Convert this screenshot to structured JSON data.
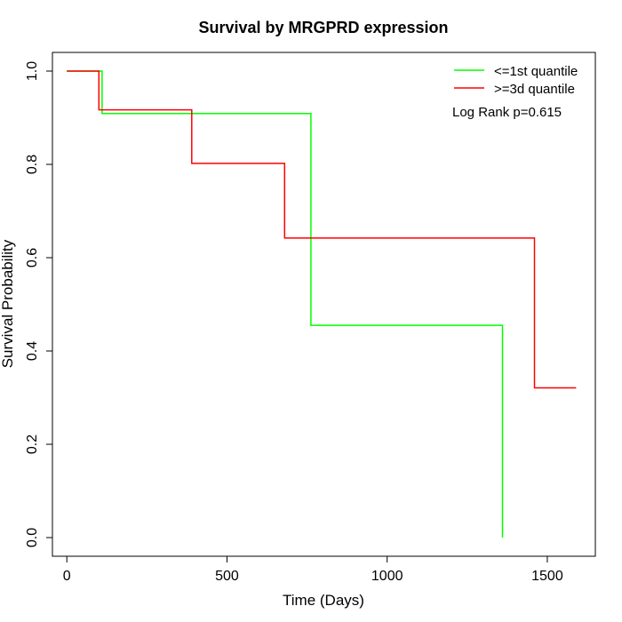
{
  "chart_data": {
    "type": "line",
    "subtype": "kaplan-meier-step",
    "title": "Survival by MRGPRD expression",
    "xlabel": "Time (Days)",
    "ylabel": "Survival Probability",
    "xlim": [
      -45,
      1650
    ],
    "ylim": [
      -0.04,
      1.04
    ],
    "xticks": [
      0,
      500,
      1000,
      1500
    ],
    "xtick_labels": [
      "0",
      "500",
      "1000",
      "1500"
    ],
    "yticks": [
      0.0,
      0.2,
      0.4,
      0.6,
      0.8,
      1.0
    ],
    "ytick_labels": [
      "0.0",
      "0.2",
      "0.4",
      "0.6",
      "0.8",
      "1.0"
    ],
    "grid": false,
    "legend_position": "top-right",
    "annotation": "Log Rank p=0.615",
    "series": [
      {
        "name": "<=1st quantile",
        "color": "#00ff00",
        "x": [
          0,
          110,
          110,
          762,
          762,
          1360,
          1360
        ],
        "y": [
          1.0,
          1.0,
          0.909,
          0.909,
          0.455,
          0.455,
          0.0
        ]
      },
      {
        "name": ">=3d quantile",
        "color": "#ff0000",
        "x": [
          0,
          100,
          100,
          390,
          390,
          680,
          680,
          1460,
          1460,
          1590
        ],
        "y": [
          1.0,
          1.0,
          0.917,
          0.917,
          0.802,
          0.802,
          0.642,
          0.642,
          0.321,
          0.321
        ]
      }
    ]
  }
}
